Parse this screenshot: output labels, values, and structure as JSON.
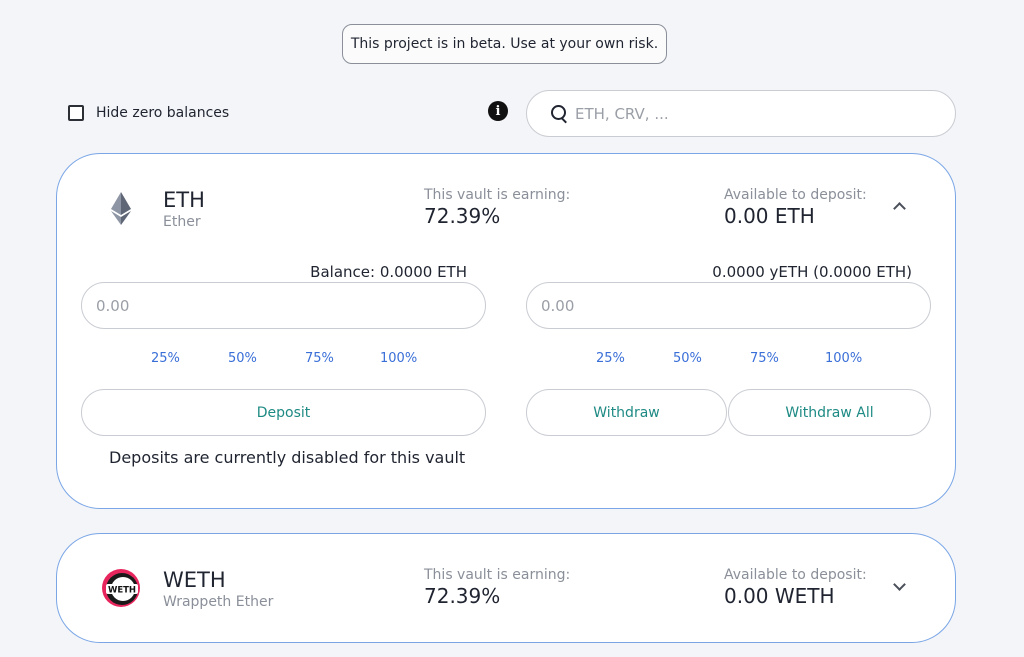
{
  "banner": {
    "text": "This project is in beta. Use at your own risk."
  },
  "filters": {
    "hide_zero_label": "Hide zero balances",
    "hide_zero_checked": false,
    "search_placeholder": "ETH, CRV, ...",
    "search_value": ""
  },
  "vaults": [
    {
      "symbol": "ETH",
      "name": "Ether",
      "icon": "ethereum-icon",
      "earning_label": "This vault is earning:",
      "earning_value": "72.39%",
      "available_label": "Available to deposit:",
      "available_value": "0.00 ETH",
      "expanded": true,
      "deposit": {
        "balance_text": "Balance: 0.0000 ETH",
        "placeholder": "0.00",
        "percents": [
          "25%",
          "50%",
          "75%",
          "100%"
        ],
        "button_label": "Deposit",
        "disabled_message": "Deposits are currently disabled for this vault"
      },
      "withdraw": {
        "balance_text": "0.0000 yETH (0.0000 ETH)",
        "placeholder": "0.00",
        "percents": [
          "25%",
          "50%",
          "75%",
          "100%"
        ],
        "button_label": "Withdraw",
        "button_all_label": "Withdraw All"
      }
    },
    {
      "symbol": "WETH",
      "name": "Wrappeth Ether",
      "icon": "weth-icon",
      "earning_label": "This vault is earning:",
      "earning_value": "72.39%",
      "available_label": "Available to deposit:",
      "available_value": "0.00 WETH",
      "expanded": false
    }
  ],
  "colors": {
    "accent_text": "#1e8a84",
    "link": "#3a6fd8",
    "card_border": "#7aa6e6"
  }
}
